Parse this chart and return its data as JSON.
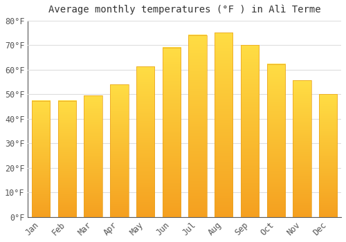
{
  "title": "Average monthly temperatures (°F ) in Alì Terme",
  "months": [
    "Jan",
    "Feb",
    "Mar",
    "Apr",
    "May",
    "Jun",
    "Jul",
    "Aug",
    "Sep",
    "Oct",
    "Nov",
    "Dec"
  ],
  "values": [
    47.3,
    47.3,
    49.5,
    54.0,
    61.2,
    69.0,
    74.0,
    75.0,
    70.0,
    62.2,
    55.6,
    50.0
  ],
  "bar_color_top": "#FFDD44",
  "bar_color_bottom": "#F5A020",
  "background_color": "#FFFFFF",
  "grid_color": "#DDDDDD",
  "ylim": [
    0,
    80
  ],
  "yticks": [
    0,
    10,
    20,
    30,
    40,
    50,
    60,
    70,
    80
  ],
  "tick_label_suffix": "°F",
  "title_fontsize": 10,
  "tick_fontsize": 8.5,
  "font_family": "monospace"
}
